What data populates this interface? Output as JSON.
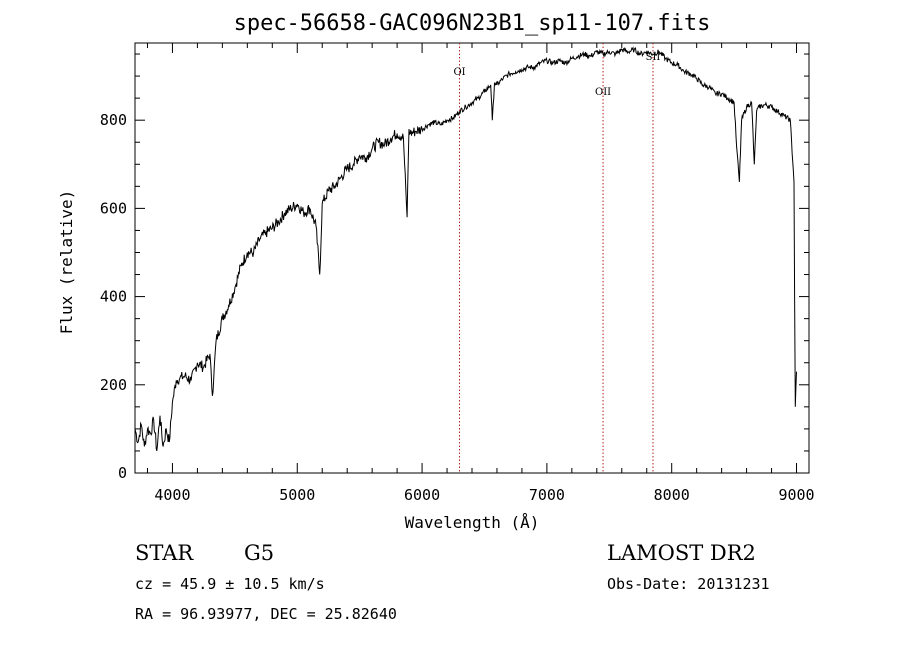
{
  "chart_data": {
    "type": "line",
    "title": "spec-56658-GAC096N23B1_sp11-107.fits",
    "xlabel": "Wavelength (Å)",
    "ylabel": "Flux (relative)",
    "xlim": [
      3700,
      9100
    ],
    "ylim": [
      0,
      975
    ],
    "xticks": [
      4000,
      5000,
      6000,
      7000,
      8000,
      9000
    ],
    "yticks": [
      0,
      200,
      400,
      600,
      800
    ],
    "grid": false,
    "series": [
      {
        "x": [
          3700,
          3725,
          3750,
          3775,
          3800,
          3825,
          3850,
          3875,
          3900,
          3925,
          3950,
          3975,
          4000,
          4030,
          4060,
          4100,
          4150,
          4200,
          4250,
          4300,
          4320,
          4350,
          4400,
          4450,
          4500,
          4550,
          4600,
          4650,
          4700,
          4750,
          4800,
          4850,
          4900,
          4950,
          5000,
          5050,
          5100,
          5150,
          5180,
          5200,
          5250,
          5300,
          5350,
          5400,
          5450,
          5500,
          5550,
          5600,
          5650,
          5700,
          5750,
          5800,
          5850,
          5880,
          5895,
          5905,
          5950,
          6000,
          6050,
          6100,
          6150,
          6200,
          6250,
          6300,
          6350,
          6400,
          6450,
          6500,
          6550,
          6563,
          6580,
          6600,
          6650,
          6700,
          6750,
          6800,
          6850,
          6900,
          6950,
          7000,
          7050,
          7100,
          7150,
          7200,
          7250,
          7300,
          7350,
          7400,
          7450,
          7500,
          7550,
          7600,
          7650,
          7700,
          7750,
          7800,
          7850,
          7900,
          7950,
          8000,
          8050,
          8100,
          8150,
          8200,
          8250,
          8300,
          8350,
          8400,
          8450,
          8500,
          8520,
          8542,
          8560,
          8600,
          8640,
          8662,
          8680,
          8700,
          8750,
          8800,
          8850,
          8900,
          8950,
          8980,
          8990,
          9000
        ],
        "y": [
          100,
          70,
          110,
          60,
          100,
          90,
          120,
          50,
          130,
          60,
          100,
          70,
          160,
          210,
          215,
          220,
          210,
          250,
          240,
          270,
          175,
          300,
          350,
          380,
          420,
          470,
          500,
          500,
          530,
          545,
          555,
          570,
          590,
          600,
          610,
          590,
          600,
          560,
          450,
          610,
          640,
          650,
          670,
          690,
          700,
          720,
          715,
          735,
          750,
          745,
          760,
          770,
          760,
          580,
          780,
          770,
          775,
          780,
          790,
          795,
          790,
          800,
          805,
          820,
          830,
          840,
          850,
          865,
          880,
          800,
          885,
          880,
          895,
          905,
          910,
          915,
          920,
          920,
          930,
          935,
          930,
          935,
          930,
          940,
          945,
          950,
          945,
          955,
          950,
          955,
          950,
          960,
          955,
          960,
          950,
          955,
          950,
          955,
          940,
          930,
          925,
          910,
          905,
          895,
          880,
          875,
          860,
          860,
          850,
          840,
          740,
          660,
          800,
          830,
          840,
          700,
          820,
          830,
          835,
          830,
          820,
          810,
          800,
          660,
          150,
          230
        ]
      }
    ],
    "annotations": [
      {
        "label": "OI",
        "x": 6300
      },
      {
        "label": "OII",
        "x": 7450
      },
      {
        "label": "SII",
        "x": 7850
      }
    ],
    "info": {
      "object_class": "STAR",
      "subclass": "G5",
      "survey": "LAMOST DR2",
      "cz": "cz = 45.9 ± 10.5 km/s",
      "obs_date": "Obs-Date: 20131231",
      "coords": "RA =  96.93977, DEC =  25.82640"
    }
  }
}
